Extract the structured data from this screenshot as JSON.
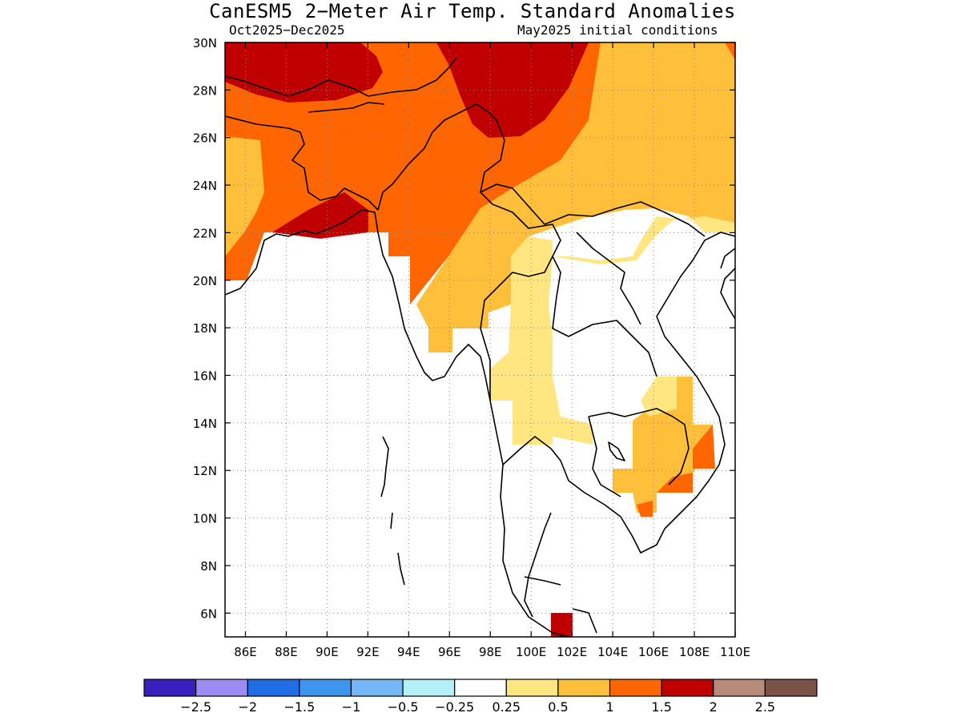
{
  "title": "CanESM5 2−Meter Air Temp. Standard Anomalies",
  "subtitle_left": "Oct2025−Dec2025",
  "subtitle_right": "May2025 initial conditions",
  "colors": {
    "cat_m3": "#3a1fbf",
    "cat_m2": "#9d8cf2",
    "cat_m15": "#1f6ee6",
    "cat_m1": "#3d95f0",
    "cat_m05": "#75b6f7",
    "cat_m025": "#b4f0f8",
    "cat_0": "#ffffff",
    "cat_025": "#ffe680",
    "cat_05": "#ffbf3a",
    "cat_1": "#ff6500",
    "cat_15": "#c00000",
    "cat_2": "#b88a7a",
    "cat_25": "#7a5248"
  },
  "chart_data": {
    "type": "heatmap",
    "lon_range": [
      85,
      110
    ],
    "lat_range": [
      5,
      30
    ],
    "lon_ticks": [
      "86E",
      "88E",
      "90E",
      "92E",
      "94E",
      "96E",
      "98E",
      "100E",
      "102E",
      "104E",
      "106E",
      "108E",
      "110E"
    ],
    "lat_ticks": [
      "30N",
      "28N",
      "26N",
      "24N",
      "22N",
      "20N",
      "18N",
      "16N",
      "14N",
      "12N",
      "10N",
      "8N",
      "6N"
    ],
    "grid": true,
    "colorbar": {
      "labels": [
        "−2.5",
        "−2",
        "−1.5",
        "−1",
        "−0.5",
        "−0.25",
        "0.25",
        "0.5",
        "1",
        "1.5",
        "2",
        "2.5"
      ],
      "colors": [
        "#3a1fbf",
        "#9d8cf2",
        "#1f6ee6",
        "#3d95f0",
        "#75b6f7",
        "#b4f0f8",
        "#ffffff",
        "#ffe680",
        "#ffbf3a",
        "#ff6500",
        "#c00000",
        "#b88a7a",
        "#7a5248"
      ]
    }
  }
}
